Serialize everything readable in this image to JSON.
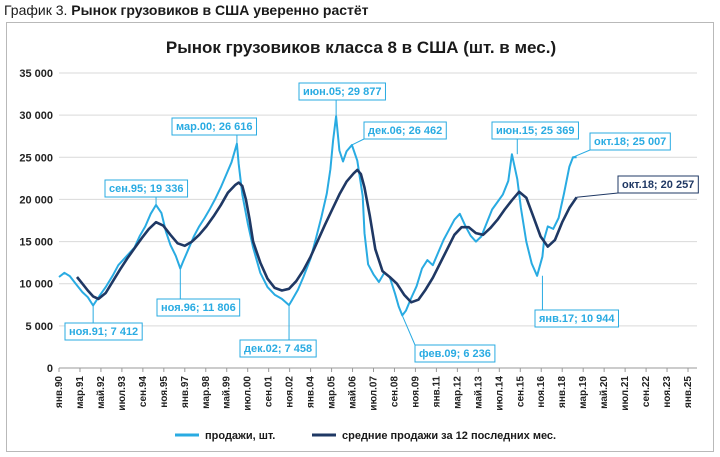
{
  "caption": {
    "prefix": "График 3.",
    "title": "Рынок грузовиков в США уверенно растёт"
  },
  "colors": {
    "sales": "#29abe2",
    "avg": "#1f3864",
    "grid": "#d9d9d9"
  },
  "chart_data": {
    "type": "line",
    "title": "Рынок грузовиков класса 8 в США (шт. в мес.)",
    "ylim": [
      0,
      35000
    ],
    "yticks": [
      0,
      5000,
      10000,
      15000,
      20000,
      25000,
      30000,
      35000
    ],
    "ytick_labels": [
      "0",
      "5 000",
      "10 000",
      "15 000",
      "20 000",
      "25 000",
      "30 000",
      "35 000"
    ],
    "x_start": 1990.0,
    "xlim": [
      1990.0,
      2025.5
    ],
    "xtick_labels": [
      "янв.90",
      "мар.91",
      "май.92",
      "июл.93",
      "сен.94",
      "ноя.95",
      "янв.97",
      "мар.98",
      "май.99",
      "июл.00",
      "сен.01",
      "ноя.02",
      "янв.04",
      "мар.05",
      "май.06",
      "июл.07",
      "сен.08",
      "ноя.09",
      "янв.11",
      "мар.12",
      "май.13",
      "июл.14",
      "сен.15",
      "ноя.16",
      "янв.18",
      "мар.19",
      "май.20",
      "июл.21",
      "сен.22",
      "ноя.23",
      "янв.25"
    ],
    "xtick_years": [
      1990.0,
      1991.167,
      1992.333,
      1993.5,
      1994.667,
      1995.833,
      1997.0,
      1998.167,
      1999.333,
      2000.5,
      2001.667,
      2002.833,
      2004.0,
      2005.167,
      2006.333,
      2007.5,
      2008.667,
      2009.833,
      2011.0,
      2012.167,
      2013.333,
      2014.5,
      2015.667,
      2016.833,
      2018.0,
      2019.167,
      2020.333,
      2021.5,
      2022.667,
      2023.833,
      2025.0
    ],
    "series": [
      {
        "name": "продажи, шт.",
        "x": [
          1990.0,
          1990.3,
          1990.6,
          1991.0,
          1991.3,
          1991.6,
          1991.9,
          1992.3,
          1992.6,
          1993.0,
          1993.3,
          1993.6,
          1993.9,
          1994.2,
          1994.5,
          1994.8,
          1995.1,
          1995.4,
          1995.7,
          1995.95,
          1996.2,
          1996.5,
          1996.75,
          1996.9,
          1997.2,
          1997.5,
          1997.8,
          1998.1,
          1998.4,
          1998.7,
          1999.0,
          1999.3,
          1999.6,
          1999.9,
          2000.0,
          2000.2,
          2000.5,
          2000.8,
          2001.2,
          2001.6,
          2002.0,
          2002.4,
          2002.8,
          2002.95,
          2003.3,
          2003.6,
          2004.0,
          2004.3,
          2004.6,
          2004.9,
          2005.1,
          2005.25,
          2005.42,
          2005.6,
          2005.8,
          2006.0,
          2006.3,
          2006.6,
          2006.9,
          2007.0,
          2007.2,
          2007.5,
          2007.8,
          2008.1,
          2008.4,
          2008.7,
          2008.9,
          2009.1,
          2009.3,
          2009.6,
          2009.9,
          2010.2,
          2010.5,
          2010.8,
          2011.1,
          2011.4,
          2011.7,
          2012.0,
          2012.3,
          2012.6,
          2012.9,
          2013.2,
          2013.5,
          2013.8,
          2014.1,
          2014.4,
          2014.7,
          2015.0,
          2015.2,
          2015.5,
          2015.7,
          2016.0,
          2016.3,
          2016.6,
          2016.9,
          2017.0,
          2017.2,
          2017.5,
          2017.8,
          2018.1,
          2018.4,
          2018.6,
          2018.8
        ],
        "values": [
          10800,
          11300,
          10900,
          9800,
          9000,
          8400,
          7412,
          8700,
          9600,
          11000,
          12200,
          12900,
          13600,
          14300,
          15700,
          16800,
          18300,
          19336,
          18400,
          16200,
          14600,
          13300,
          11806,
          12600,
          14100,
          15600,
          16800,
          17800,
          18900,
          20100,
          21400,
          22900,
          24400,
          26616,
          24200,
          20600,
          17200,
          14300,
          11300,
          9600,
          8700,
          8200,
          7458,
          8000,
          9300,
          10800,
          13000,
          15400,
          17900,
          20700,
          23600,
          27000,
          29877,
          25800,
          24500,
          25700,
          26462,
          24600,
          20400,
          16000,
          12300,
          11100,
          10200,
          11300,
          10800,
          8800,
          7300,
          6236,
          6800,
          8300,
          9700,
          11800,
          12800,
          12200,
          13700,
          15200,
          16400,
          17600,
          18300,
          16900,
          15700,
          15000,
          15600,
          17200,
          18800,
          19700,
          20600,
          22200,
          25369,
          22400,
          19000,
          15000,
          12400,
          10944,
          13200,
          15300,
          16800,
          16500,
          17800,
          20700,
          23900,
          25007,
          25007
        ]
      },
      {
        "name": "средние продажи за 12 последних мес.",
        "x": [
          1991.0,
          1991.3,
          1991.6,
          1991.9,
          1992.2,
          1992.6,
          1993.0,
          1993.4,
          1993.8,
          1994.2,
          1994.6,
          1995.0,
          1995.4,
          1995.8,
          1996.2,
          1996.6,
          1997.0,
          1997.4,
          1997.8,
          1998.2,
          1998.6,
          1999.0,
          1999.4,
          1999.8,
          2000.0,
          2000.2,
          2000.4,
          2000.6,
          2000.8,
          2001.2,
          2001.6,
          2002.0,
          2002.4,
          2002.8,
          2003.2,
          2003.6,
          2004.0,
          2004.4,
          2004.8,
          2005.2,
          2005.6,
          2006.0,
          2006.4,
          2006.6,
          2006.8,
          2007.0,
          2007.3,
          2007.6,
          2008.0,
          2008.4,
          2008.8,
          2009.2,
          2009.6,
          2010.0,
          2010.4,
          2010.8,
          2011.2,
          2011.6,
          2012.0,
          2012.4,
          2012.8,
          2013.2,
          2013.6,
          2014.0,
          2014.4,
          2014.8,
          2015.2,
          2015.6,
          2016.0,
          2016.4,
          2016.8,
          2017.2,
          2017.6,
          2018.0,
          2018.4,
          2018.8
        ],
        "values": [
          10800,
          10000,
          9200,
          8500,
          8200,
          8900,
          10300,
          11700,
          13000,
          14200,
          15400,
          16500,
          17300,
          16900,
          15800,
          14800,
          14500,
          15000,
          15800,
          16800,
          18000,
          19300,
          20800,
          21700,
          22000,
          21600,
          20000,
          17700,
          15000,
          12500,
          10600,
          9500,
          9200,
          9400,
          10300,
          11600,
          13200,
          15100,
          17000,
          18800,
          20600,
          22100,
          23100,
          23500,
          23000,
          21400,
          18000,
          14100,
          11500,
          10800,
          10000,
          8700,
          7800,
          8100,
          9300,
          10700,
          12400,
          14100,
          15800,
          16700,
          16700,
          16000,
          15800,
          16600,
          17600,
          18800,
          19900,
          20900,
          20200,
          17900,
          15600,
          14400,
          15200,
          17300,
          19000,
          20257
        ]
      }
    ],
    "annotations": [
      {
        "text": "ноя.91; 7 412",
        "series": 0,
        "x": 1991.9,
        "y": 7412
      },
      {
        "text": "сен.95; 19 336",
        "series": 0,
        "x": 1995.4,
        "y": 19336
      },
      {
        "text": "ноя.96; 11 806",
        "series": 0,
        "x": 1996.75,
        "y": 11806
      },
      {
        "text": "мар.00; 26 616",
        "series": 0,
        "x": 1999.9,
        "y": 26616
      },
      {
        "text": "дек.02; 7 458",
        "series": 0,
        "x": 2002.8,
        "y": 7458
      },
      {
        "text": "июн.05; 29 877",
        "series": 0,
        "x": 2005.42,
        "y": 29877
      },
      {
        "text": "дек.06; 26 462",
        "series": 0,
        "x": 2006.3,
        "y": 26462
      },
      {
        "text": "фев.09; 6 236",
        "series": 0,
        "x": 2009.1,
        "y": 6236
      },
      {
        "text": "июн.15; 25 369",
        "series": 0,
        "x": 2015.5,
        "y": 25369
      },
      {
        "text": "янв.17; 10 944",
        "series": 0,
        "x": 2016.9,
        "y": 10944
      },
      {
        "text": "окт.18; 25 007",
        "series": 0,
        "x": 2018.6,
        "y": 25007
      },
      {
        "text": "окт.18; 20 257",
        "series": 1,
        "x": 2018.8,
        "y": 20257
      }
    ],
    "legend": {
      "position": "bottom"
    },
    "grid": true
  }
}
